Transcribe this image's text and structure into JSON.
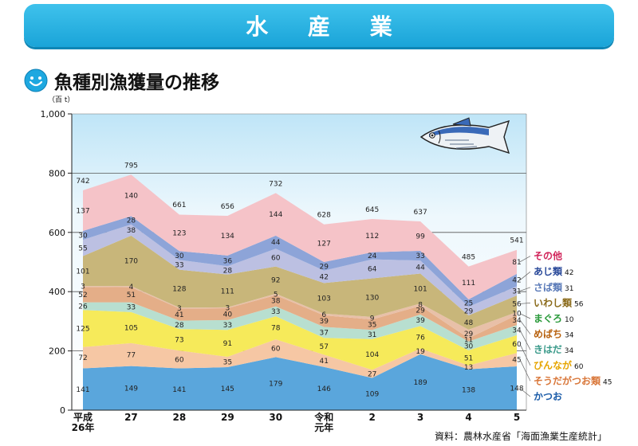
{
  "banner": {
    "title": "水 産 業"
  },
  "subtitle": "魚種別漁獲量の推移",
  "source": "資料：農林水産省「海面漁業生産統計」",
  "chart_data": {
    "type": "area",
    "stacked": true,
    "yunit": "（百 t）",
    "ylim": [
      0,
      1000
    ],
    "yticks": [
      "0",
      "200",
      "400",
      "600",
      "800",
      "1,000"
    ],
    "categories": [
      [
        "平成",
        "26年"
      ],
      [
        "27"
      ],
      [
        "28"
      ],
      [
        "29"
      ],
      [
        "30"
      ],
      [
        "令和",
        "元年"
      ],
      [
        "2"
      ],
      [
        "3"
      ],
      [
        "4"
      ],
      [
        "5"
      ]
    ],
    "grid": "horizontal",
    "totals": [
      742,
      795,
      661,
      656,
      732,
      628,
      645,
      637,
      485,
      541
    ],
    "series": [
      {
        "name": "かつお",
        "color": "#5aa6dc",
        "labelColor": "#1a5ba8",
        "values": [
          141,
          149,
          141,
          145,
          179,
          146,
          109,
          189,
          138,
          148
        ],
        "latest": ""
      },
      {
        "name": "そうだがつお類",
        "color": "#f6c7a4",
        "labelColor": "#d9773a",
        "values": [
          72,
          77,
          60,
          35,
          60,
          41,
          27,
          19,
          13,
          45
        ],
        "latest": "45"
      },
      {
        "name": "びんなが",
        "color": "#f6ea5a",
        "labelColor": "#e6a500",
        "values": [
          125,
          105,
          73,
          91,
          78,
          57,
          104,
          76,
          51,
          60
        ],
        "latest": "60"
      },
      {
        "name": "きはだ",
        "color": "#b8dfd0",
        "labelColor": "#3a9a8a",
        "values": [
          26,
          33,
          28,
          33,
          33,
          37,
          31,
          39,
          30,
          34
        ],
        "latest": "34"
      },
      {
        "name": "めばち",
        "color": "#e4ae88",
        "labelColor": "#b8620f",
        "values": [
          52,
          51,
          41,
          40,
          38,
          39,
          35,
          29,
          11,
          34
        ],
        "latest": "34"
      },
      {
        "name": "まぐろ",
        "color": "#e8c0a8",
        "labelColor": "#2a9a3a",
        "values": [
          3,
          4,
          3,
          3,
          5,
          6,
          9,
          8,
          29,
          10
        ],
        "latest": "10"
      },
      {
        "name": "いわし類",
        "color": "#c8b67a",
        "labelColor": "#8a6a1a",
        "values": [
          101,
          170,
          128,
          111,
          92,
          103,
          130,
          101,
          48,
          56
        ],
        "latest": "56"
      },
      {
        "name": "さば類",
        "color": "#bcc0e2",
        "labelColor": "#5a7ab8",
        "values": [
          55,
          38,
          33,
          28,
          60,
          42,
          64,
          44,
          29,
          31
        ],
        "latest": "31"
      },
      {
        "name": "あじ類",
        "color": "#8da4d8",
        "labelColor": "#2a4a9a",
        "values": [
          30,
          28,
          30,
          36,
          44,
          29,
          24,
          33,
          25,
          42
        ],
        "latest": "42"
      },
      {
        "name": "その他",
        "color": "#f5c3c8",
        "labelColor": "#d1245a",
        "values": [
          137,
          140,
          123,
          134,
          144,
          127,
          112,
          99,
          111,
          81
        ],
        "latest": ""
      }
    ]
  }
}
